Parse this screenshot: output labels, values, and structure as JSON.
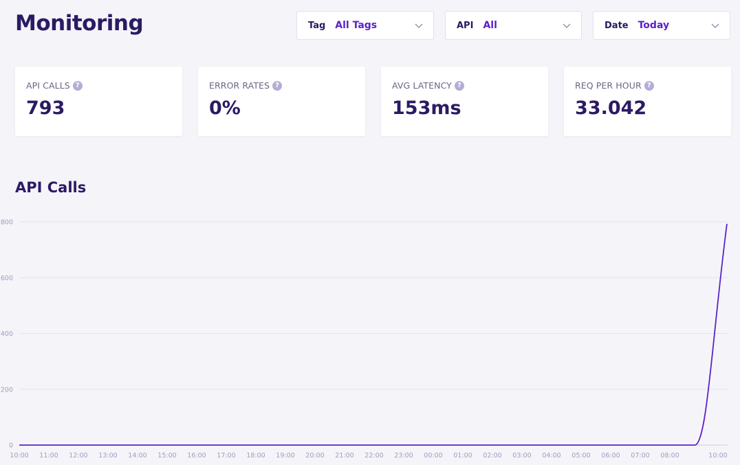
{
  "header": {
    "title": "Monitoring"
  },
  "filters": [
    {
      "label": "Tag",
      "value": "All Tags"
    },
    {
      "label": "API",
      "value": "All"
    },
    {
      "label": "Date",
      "value": "Today"
    }
  ],
  "stats": [
    {
      "label": "API CALLS",
      "value": "793"
    },
    {
      "label": "ERROR RATES",
      "value": "0%"
    },
    {
      "label": "AVG LATENCY",
      "value": "153ms"
    },
    {
      "label": "REQ PER HOUR",
      "value": "33.042"
    }
  ],
  "section": {
    "title": "API Calls"
  },
  "colors": {
    "accent": "#5a22c8",
    "text": "#2c1a63",
    "background": "#f5f4f9"
  },
  "chart_data": {
    "type": "line",
    "title": "API Calls",
    "categories": [
      "10:00",
      "11:00",
      "12:00",
      "13:00",
      "14:00",
      "15:00",
      "16:00",
      "17:00",
      "18:00",
      "19:00",
      "20:00",
      "21:00",
      "22:00",
      "23:00",
      "00:00",
      "01:00",
      "02:00",
      "03:00",
      "04:00",
      "05:00",
      "06:00",
      "07:00",
      "08:00",
      "10:00"
    ],
    "series": [
      {
        "values": [
          0,
          0,
          0,
          0,
          0,
          0,
          0,
          0,
          0,
          0,
          0,
          0,
          0,
          0,
          0,
          0,
          0,
          0,
          0,
          0,
          0,
          0,
          0,
          793
        ],
        "color": "#5a22c8"
      }
    ],
    "yticks": [
      0,
      200,
      400,
      600,
      800
    ],
    "ylim": [
      0,
      800
    ],
    "grid": true
  }
}
